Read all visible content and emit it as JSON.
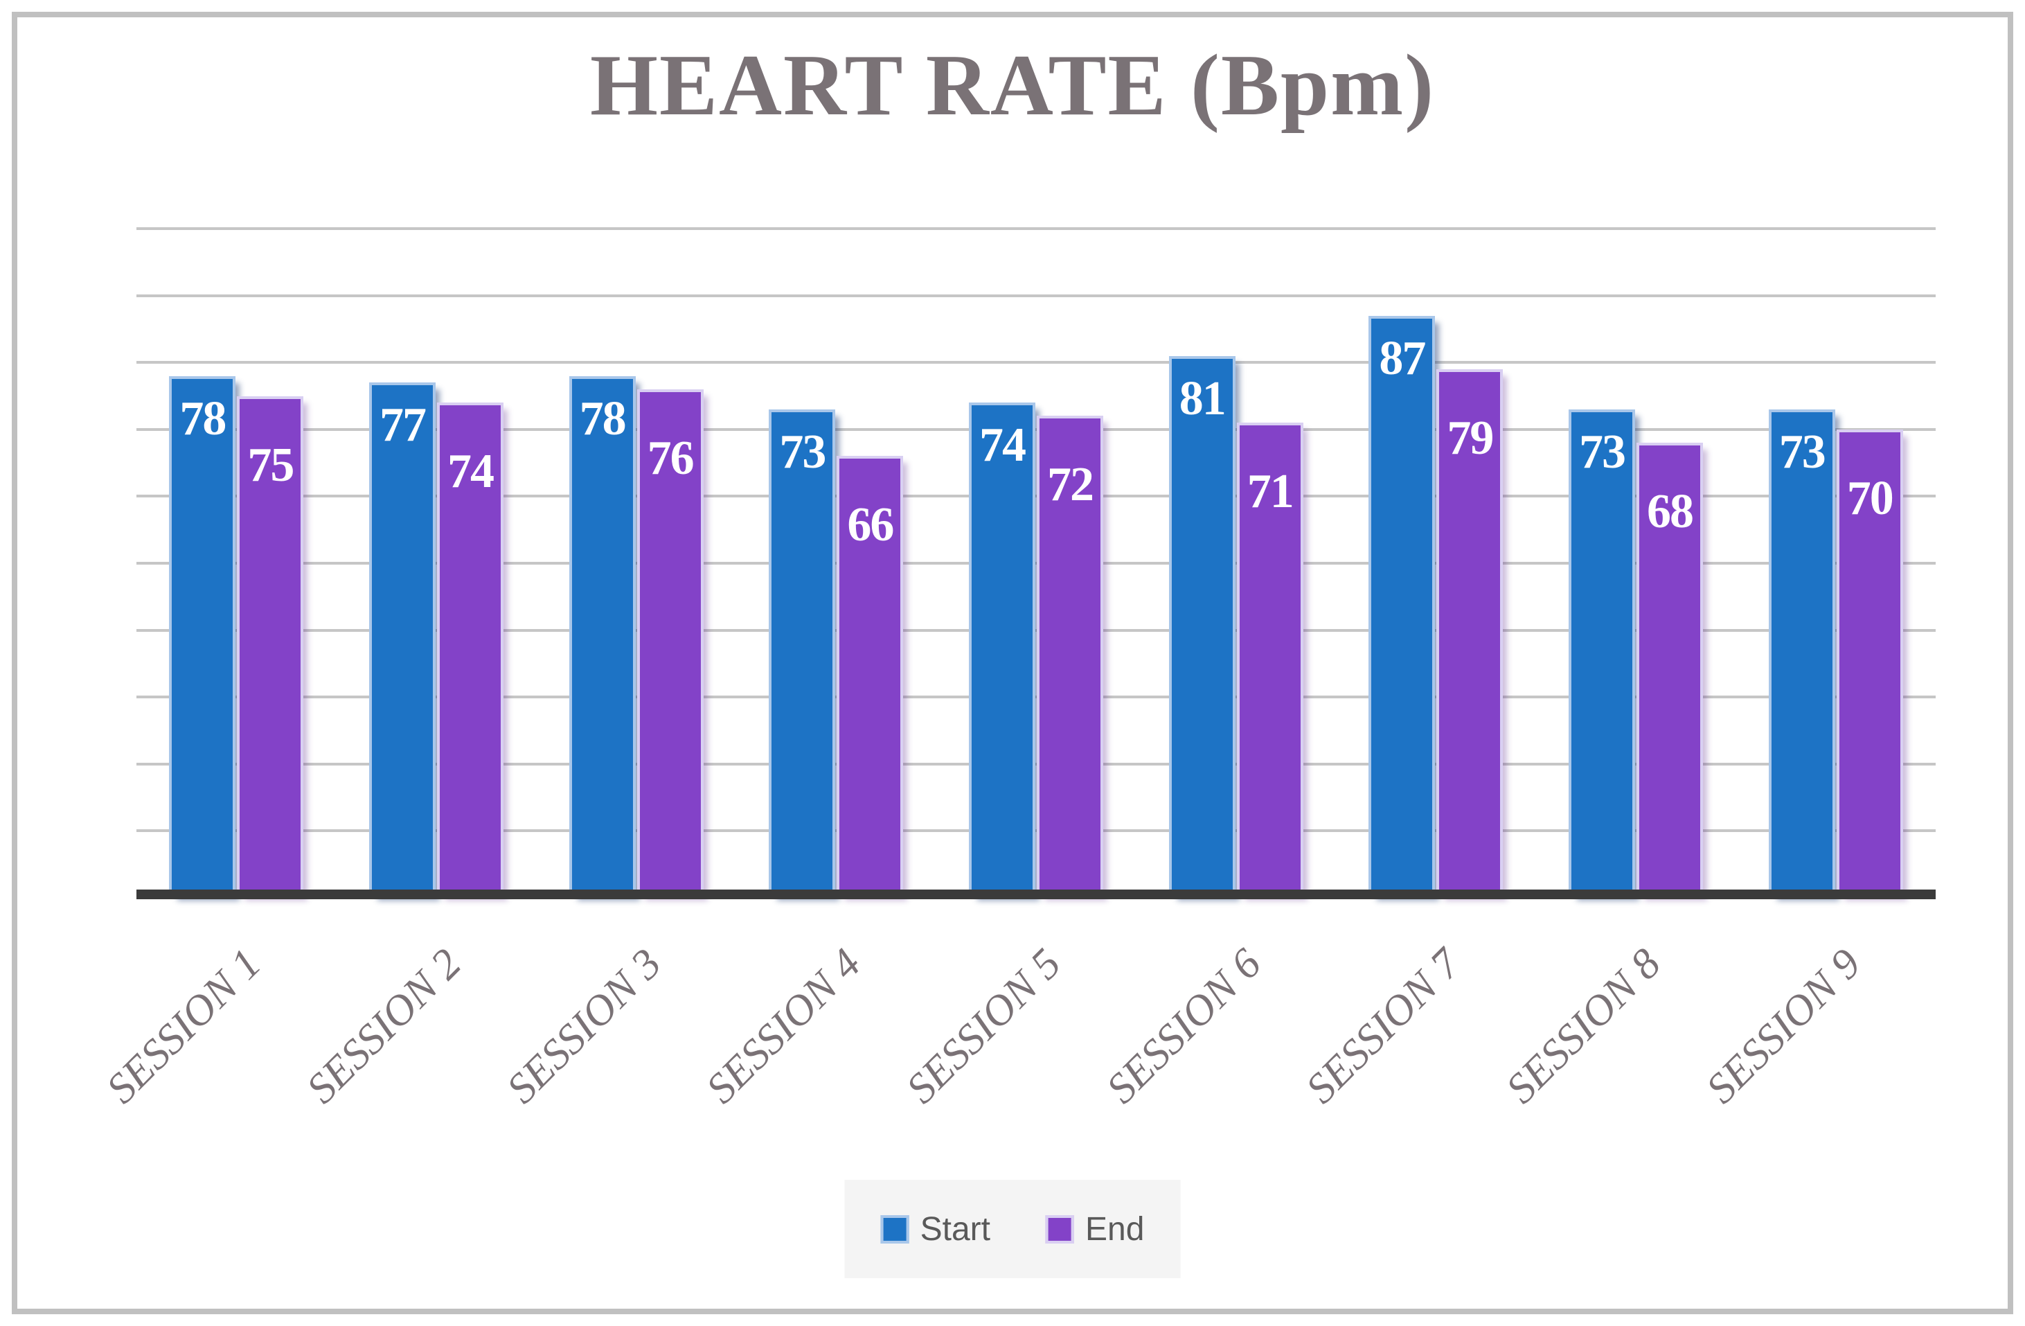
{
  "chart_data": {
    "type": "bar",
    "title": "HEART RATE (Bpm)",
    "categories": [
      "SESSION 1",
      "SESSION 2",
      "SESSION 3",
      "SESSION 4",
      "SESSION 5",
      "SESSION 6",
      "SESSION 7",
      "SESSION 8",
      "SESSION 9"
    ],
    "series": [
      {
        "name": "Start",
        "color": "#1D73C5",
        "border_color": "#A9C7EA",
        "shadow_color": "rgba(25,55,115,0.45)",
        "values": [
          78,
          77,
          78,
          73,
          74,
          81,
          87,
          73,
          73
        ]
      },
      {
        "name": "End",
        "color": "#8342C8",
        "border_color": "#D9CFF2",
        "shadow_color": "rgba(90,40,140,0.30)",
        "values": [
          75,
          74,
          76,
          66,
          72,
          71,
          79,
          68,
          70
        ]
      }
    ],
    "ylim": [
      0,
      100
    ],
    "gridline_step": 10,
    "grid": true,
    "y_axis_tick_labels_visible": false,
    "value_label_position": "inside-end",
    "x_label_rotation_deg": -45,
    "legend_position": "bottom"
  },
  "styles": {
    "background": "#FFFFFF",
    "frame_border_color": "#C0C0C0",
    "title_color": "#7A7276",
    "xlabel_color": "#7A7276",
    "gridline_color": "#C6C6C6",
    "axis_color": "#3B3B3B",
    "value_label_color": "#FFFFFF",
    "legend_bg": "#F4F4F4",
    "legend_text_color": "#595959"
  }
}
